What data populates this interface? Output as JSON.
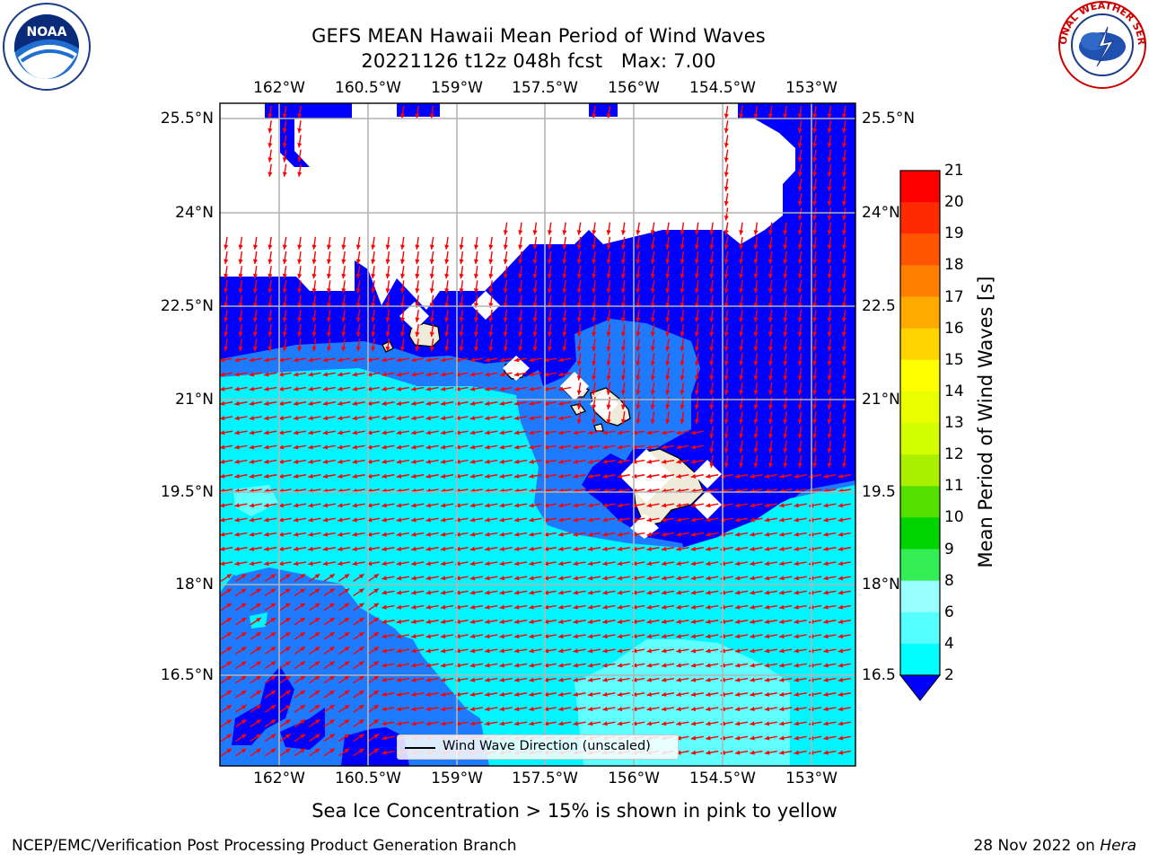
{
  "title": {
    "line1": "GEFS MEAN Hawaii Mean Period of Wind Waves",
    "line2": "20221126 t12z 048h fcst   Max: 7.00"
  },
  "logos": {
    "left": {
      "name": "NOAA",
      "ring_text": "NATIONAL OCEANIC AND ATMOSPHERIC ADMINISTRATION · U.S. DEPARTMENT OF COMMERCE"
    },
    "right": {
      "name": "NATIONAL WEATHER SERVICE"
    }
  },
  "map": {
    "lon_labels": [
      "162°W",
      "160.5°W",
      "159°W",
      "157.5°W",
      "156°W",
      "154.5°W",
      "153°W"
    ],
    "lat_labels_left": [
      "25.5°N",
      "24°N",
      "22.5°N",
      "21°N",
      "19.5°N",
      "18°N",
      "16.5°N"
    ],
    "lat_labels_right": [
      "25.5°N",
      "24°N",
      "22.5",
      "21°N",
      "19.5",
      "18°N",
      "16.5"
    ],
    "arrow_color": "#ff0000",
    "land_color": "#efebdb",
    "legend_label": "Wind Wave Direction (unscaled)"
  },
  "colorbar": {
    "label": "Mean Period of Wind Waves [s]",
    "ticks": [
      "21",
      "20",
      "19",
      "18",
      "17",
      "16",
      "15",
      "14",
      "13",
      "12",
      "11",
      "10",
      "9",
      "8",
      "6",
      "4",
      "2"
    ],
    "colors": [
      "#ff0000",
      "#ff2a00",
      "#ff5500",
      "#ff8000",
      "#ffaa00",
      "#ffd400",
      "#ffff00",
      "#eaff00",
      "#d4ff00",
      "#aaf000",
      "#55e000",
      "#00d400",
      "#33ee55",
      "#55ff99",
      "#99ffff",
      "#55ffff",
      "#00ffff",
      "#0080ff"
    ],
    "extend_color": "#0000ff"
  },
  "fill_colors": {
    "lt2": "#0000ff",
    "c2_4": "#1e7bff",
    "c4_6": "#00f5ff",
    "c6_8": "#60ffff"
  },
  "note": "Sea Ice Concentration > 15% is shown in pink to yellow",
  "footer": {
    "left": "NCEP/EMC/Verification Post Processing Product Generation Branch",
    "right_date": "28 Nov 2022 on ",
    "right_host": "Hera"
  }
}
